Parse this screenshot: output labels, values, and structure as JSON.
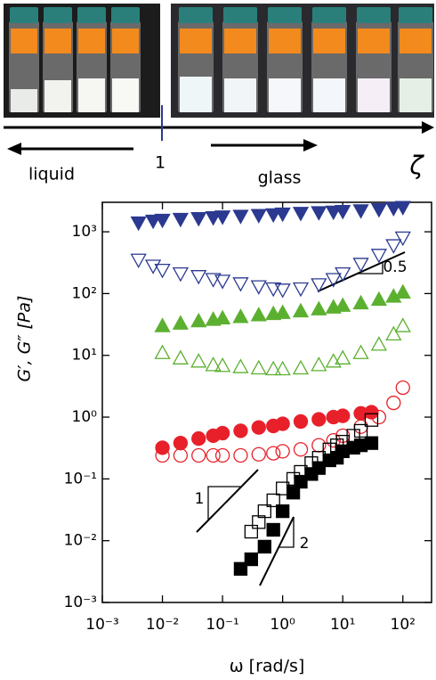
{
  "header": {
    "left_label": "liquid",
    "marker_label": "1",
    "right_label": "glass",
    "axis_symbol": "ζ"
  },
  "chart_data": {
    "type": "scatter",
    "log_x": true,
    "log_y": true,
    "grid": false,
    "x_label": "ω [rad/s]",
    "y_label": "G′, G″ [Pa]",
    "xlim": [
      0.001,
      300
    ],
    "ylim": [
      0.001,
      3000
    ],
    "xticks": [
      {
        "value": 0.001,
        "label": "10⁻³"
      },
      {
        "value": 0.01,
        "label": "10⁻²"
      },
      {
        "value": 0.1,
        "label": "10⁻¹"
      },
      {
        "value": 1,
        "label": "10⁰"
      },
      {
        "value": 10,
        "label": "10¹"
      },
      {
        "value": 100,
        "label": "10²"
      }
    ],
    "yticks": [
      {
        "value": 0.001,
        "label": "10⁻³"
      },
      {
        "value": 0.01,
        "label": "10⁻²"
      },
      {
        "value": 0.1,
        "label": "10⁻¹"
      },
      {
        "value": 1,
        "label": "10⁰"
      },
      {
        "value": 10,
        "label": "10¹"
      },
      {
        "value": 100,
        "label": "10²"
      },
      {
        "value": 1000,
        "label": "10³"
      }
    ],
    "annotations": [
      "0.5",
      "1",
      "2"
    ],
    "series": [
      {
        "color": "#2b3990",
        "marker": "down-triangle",
        "filled": true,
        "x": [
          0.004,
          0.007,
          0.01,
          0.02,
          0.04,
          0.07,
          0.1,
          0.2,
          0.4,
          0.7,
          1,
          2,
          4,
          7,
          10,
          20,
          40,
          70,
          100
        ],
        "values": [
          1400,
          1500,
          1550,
          1600,
          1650,
          1700,
          1750,
          1800,
          1850,
          1900,
          1950,
          2000,
          2050,
          2100,
          2150,
          2200,
          2300,
          2400,
          2500
        ]
      },
      {
        "color": "#2b3990",
        "marker": "down-triangle",
        "filled": false,
        "x": [
          0.004,
          0.007,
          0.01,
          0.02,
          0.04,
          0.07,
          0.1,
          0.2,
          0.4,
          0.7,
          1,
          2,
          4,
          7,
          10,
          20,
          40,
          70,
          100
        ],
        "values": [
          350,
          280,
          240,
          210,
          190,
          170,
          160,
          145,
          130,
          120,
          115,
          120,
          140,
          170,
          210,
          300,
          420,
          600,
          800
        ]
      },
      {
        "color": "#5cb030",
        "marker": "triangle",
        "filled": true,
        "x": [
          0.01,
          0.02,
          0.04,
          0.07,
          0.1,
          0.2,
          0.4,
          0.7,
          1,
          2,
          4,
          7,
          10,
          20,
          40,
          70,
          100
        ],
        "values": [
          30,
          33,
          36,
          38,
          40,
          42,
          45,
          47,
          49,
          52,
          56,
          60,
          64,
          70,
          80,
          90,
          105
        ]
      },
      {
        "color": "#5cb030",
        "marker": "triangle",
        "filled": false,
        "x": [
          0.01,
          0.02,
          0.04,
          0.07,
          0.1,
          0.2,
          0.4,
          0.7,
          1,
          2,
          4,
          7,
          10,
          20,
          40,
          70,
          100
        ],
        "values": [
          11,
          9,
          8,
          7,
          6.8,
          6.5,
          6.2,
          6,
          6,
          6.2,
          7,
          8,
          9,
          11,
          15,
          22,
          30
        ]
      },
      {
        "color": "#e8202a",
        "marker": "circle",
        "filled": true,
        "x": [
          0.01,
          0.02,
          0.04,
          0.07,
          0.1,
          0.2,
          0.4,
          0.7,
          1,
          2,
          4,
          7,
          10,
          20,
          30
        ],
        "values": [
          0.32,
          0.38,
          0.45,
          0.5,
          0.55,
          0.6,
          0.68,
          0.72,
          0.78,
          0.85,
          0.92,
          1,
          1.05,
          1.15,
          1.2
        ]
      },
      {
        "color": "#e8202a",
        "marker": "circle",
        "filled": false,
        "x": [
          0.01,
          0.02,
          0.04,
          0.07,
          0.1,
          0.2,
          0.4,
          0.7,
          1,
          2,
          4,
          7,
          10,
          20,
          40,
          70,
          100
        ],
        "values": [
          0.24,
          0.24,
          0.24,
          0.24,
          0.24,
          0.24,
          0.25,
          0.26,
          0.28,
          0.3,
          0.35,
          0.42,
          0.5,
          0.7,
          1,
          1.7,
          3
        ]
      },
      {
        "color": "#000000",
        "marker": "square",
        "filled": false,
        "x": [
          0.3,
          0.4,
          0.5,
          0.7,
          1,
          1.5,
          2,
          3,
          4,
          6,
          8,
          10,
          15,
          20,
          30
        ],
        "values": [
          0.014,
          0.02,
          0.03,
          0.045,
          0.07,
          0.1,
          0.13,
          0.18,
          0.22,
          0.3,
          0.35,
          0.4,
          0.5,
          0.6,
          0.9
        ]
      },
      {
        "color": "#000000",
        "marker": "square",
        "filled": true,
        "x": [
          0.2,
          0.3,
          0.5,
          0.7,
          1,
          1.5,
          2,
          3,
          4,
          6,
          8,
          10,
          15,
          20,
          30
        ],
        "values": [
          0.0035,
          0.005,
          0.008,
          0.015,
          0.03,
          0.06,
          0.09,
          0.12,
          0.15,
          0.2,
          0.22,
          0.28,
          0.32,
          0.35,
          0.38
        ]
      }
    ]
  }
}
